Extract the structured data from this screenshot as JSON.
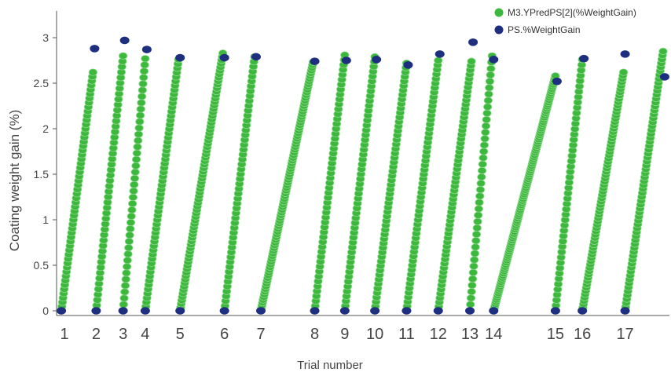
{
  "chart_data": {
    "type": "scatter",
    "xlabel": "Trial number",
    "ylabel": "Coating weight gain (%)",
    "ylim": [
      -0.05,
      3.3
    ],
    "yticks": [
      "0",
      "0.5",
      "1",
      "1.5",
      "2",
      "2.5",
      "3"
    ],
    "xticks": [
      "1",
      "2",
      "3",
      "4",
      "5",
      "6",
      "7",
      "8",
      "9",
      "10",
      "11",
      "12",
      "13",
      "14",
      "15",
      "16",
      "17"
    ],
    "grid": false,
    "legend_position": "top-right",
    "colors": {
      "predicted": "#3cb83c",
      "measured": "#1f2f80"
    },
    "series": [
      {
        "name": "M3.YPredPS[2](%WeightGain)",
        "marker": "green-dot"
      },
      {
        "name": "PS.%WeightGain",
        "marker": "navy-dot"
      }
    ],
    "trials": [
      {
        "label": "1",
        "x0": 1.0,
        "x1": 2.0,
        "y_end": 2.62,
        "measured_end": 2.88
      },
      {
        "label": "2",
        "x0": 2.1,
        "x1": 2.95,
        "y_end": 2.8,
        "measured_end": 2.97
      },
      {
        "label": "3",
        "x0": 2.95,
        "x1": 3.65,
        "y_end": 2.77,
        "measured_end": 2.87
      },
      {
        "label": "4",
        "x0": 3.65,
        "x1": 4.7,
        "y_end": 2.76,
        "measured_end": 2.78
      },
      {
        "label": "5",
        "x0": 4.75,
        "x1": 6.1,
        "y_end": 2.83,
        "measured_end": 2.78
      },
      {
        "label": "6",
        "x0": 6.15,
        "x1": 7.1,
        "y_end": 2.79,
        "measured_end": 2.79
      },
      {
        "label": "7",
        "x0": 7.3,
        "x1": 8.95,
        "y_end": 2.73,
        "measured_end": 2.74
      },
      {
        "label": "8",
        "x0": 9.0,
        "x1": 9.95,
        "y_end": 2.81,
        "measured_end": 2.75
      },
      {
        "label": "9",
        "x0": 9.95,
        "x1": 10.9,
        "y_end": 2.79,
        "measured_end": 2.76
      },
      {
        "label": "10",
        "x0": 10.9,
        "x1": 11.9,
        "y_end": 2.72,
        "measured_end": 2.7
      },
      {
        "label": "11",
        "x0": 11.9,
        "x1": 12.9,
        "y_end": 2.75,
        "measured_end": 2.82
      },
      {
        "label": "12",
        "x0": 12.9,
        "x1": 13.95,
        "y_end": 2.74,
        "measured_end": 2.95
      },
      {
        "label": "13",
        "x0": 13.9,
        "x1": 14.6,
        "y_end": 2.8,
        "measured_end": 2.76
      },
      {
        "label": "14",
        "x0": 14.65,
        "x1": 16.6,
        "y_end": 2.58,
        "measured_end": 2.52
      },
      {
        "label": "15",
        "x0": 16.6,
        "x1": 17.45,
        "y_end": 2.76,
        "measured_end": 2.77
      },
      {
        "label": "16",
        "x0": 17.45,
        "x1": 18.75,
        "y_end": 2.62,
        "measured_end": 2.82
      },
      {
        "label": "17",
        "x0": 18.8,
        "x1": 20.0,
        "y_end": 2.85,
        "measured_end": 2.57
      }
    ]
  }
}
